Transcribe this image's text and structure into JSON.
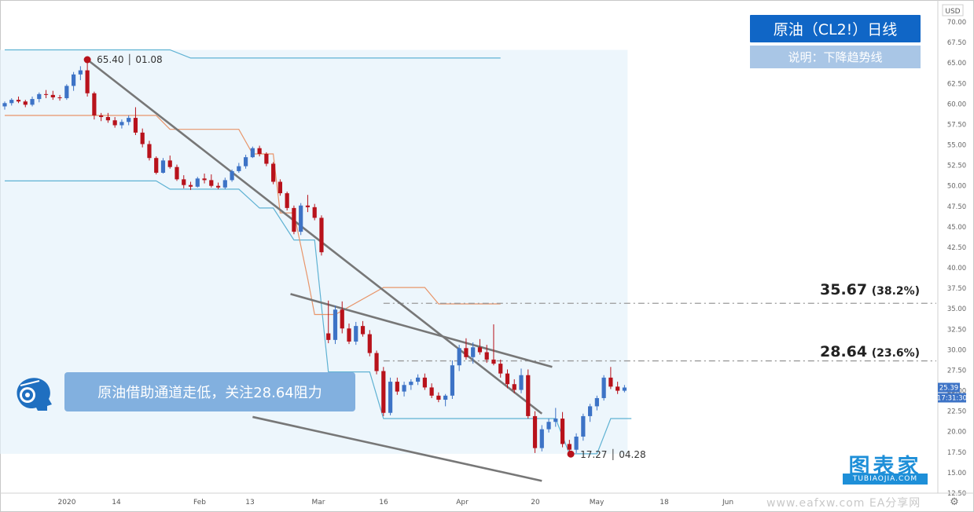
{
  "title_box": {
    "title": "原油（CL2!）日线",
    "subtitle": "说明：下降趋势线"
  },
  "note": {
    "text": "原油借助通道走低，关注28.64阻力"
  },
  "annotations": {
    "high": "65.40 │ 01.08",
    "low": "17.27 │ 04.28"
  },
  "levels": [
    {
      "value": "35.67",
      "pct": "(38.2%)"
    },
    {
      "value": "28.64",
      "pct": "(23.6%)"
    }
  ],
  "price_tags": {
    "currency": "USD",
    "last": "25.39",
    "countdown": "17:31:30"
  },
  "brand": {
    "main": "图表家",
    "sub": "TUBIAOJIA.COM"
  },
  "watermark": "www.eafxw.com  EA分享网",
  "colors": {
    "up": "#3d73c6",
    "down": "#b8121b",
    "channel": "#5fb2d3",
    "mid": "#e8956a",
    "trend": "#777777",
    "dash": "#999999"
  },
  "chart_data": {
    "type": "candlestick",
    "ylim": [
      12.5,
      71.0
    ],
    "y_ticks": [
      "70.00",
      "67.50",
      "65.00",
      "62.50",
      "60.00",
      "57.50",
      "55.00",
      "52.50",
      "50.00",
      "47.50",
      "45.00",
      "42.50",
      "40.00",
      "37.50",
      "35.00",
      "32.50",
      "30.00",
      "27.50",
      "25.00",
      "22.50",
      "20.00",
      "17.50",
      "15.00",
      "12.50"
    ],
    "x_ticks": [
      "2020",
      "14",
      "Feb",
      "13",
      "Mar",
      "16",
      "Apr",
      "20",
      "May",
      "18",
      "Jun"
    ],
    "candles": [
      [
        59.7,
        60.3,
        59.3,
        60.1
      ],
      [
        60.1,
        60.7,
        59.8,
        60.5
      ],
      [
        60.5,
        60.9,
        60.1,
        60.3
      ],
      [
        60.3,
        60.5,
        59.6,
        59.9
      ],
      [
        59.9,
        60.9,
        59.7,
        60.6
      ],
      [
        60.6,
        61.4,
        60.2,
        61.2
      ],
      [
        61.2,
        61.7,
        60.7,
        61.1
      ],
      [
        61.1,
        61.6,
        60.5,
        60.8
      ],
      [
        60.8,
        61.1,
        60.4,
        60.7
      ],
      [
        60.7,
        62.4,
        60.5,
        62.2
      ],
      [
        62.2,
        63.9,
        61.6,
        63.6
      ],
      [
        63.6,
        64.6,
        62.9,
        64.1
      ],
      [
        64.1,
        65.4,
        60.9,
        61.3
      ],
      [
        61.3,
        61.5,
        58.1,
        58.6
      ],
      [
        58.6,
        58.9,
        57.9,
        58.4
      ],
      [
        58.4,
        58.9,
        57.7,
        58.0
      ],
      [
        58.0,
        58.4,
        57.1,
        57.4
      ],
      [
        57.4,
        58.1,
        57.0,
        57.8
      ],
      [
        57.8,
        58.6,
        57.4,
        58.3
      ],
      [
        58.3,
        59.6,
        56.2,
        56.5
      ],
      [
        56.5,
        57.0,
        54.7,
        55.1
      ],
      [
        55.1,
        55.5,
        53.1,
        53.4
      ],
      [
        53.4,
        53.6,
        51.4,
        51.6
      ],
      [
        51.6,
        53.4,
        51.5,
        53.1
      ],
      [
        53.1,
        53.7,
        52.1,
        52.3
      ],
      [
        52.3,
        52.6,
        50.6,
        50.8
      ],
      [
        50.8,
        51.3,
        49.7,
        50.1
      ],
      [
        50.1,
        50.5,
        49.5,
        49.9
      ],
      [
        49.9,
        51.1,
        49.8,
        50.9
      ],
      [
        50.9,
        51.5,
        50.3,
        50.7
      ],
      [
        50.7,
        51.4,
        49.8,
        50.0
      ],
      [
        50.0,
        50.4,
        49.6,
        49.8
      ],
      [
        49.8,
        51.0,
        49.6,
        50.7
      ],
      [
        50.7,
        52.0,
        50.5,
        51.8
      ],
      [
        51.8,
        52.8,
        51.6,
        52.4
      ],
      [
        52.4,
        53.8,
        52.1,
        53.5
      ],
      [
        53.5,
        54.8,
        53.4,
        54.6
      ],
      [
        54.6,
        54.9,
        53.6,
        53.9
      ],
      [
        53.9,
        54.1,
        52.4,
        52.7
      ],
      [
        52.7,
        52.9,
        50.2,
        50.5
      ],
      [
        50.5,
        50.8,
        48.8,
        49.1
      ],
      [
        49.1,
        49.3,
        47.0,
        47.3
      ],
      [
        47.3,
        47.6,
        44.1,
        44.4
      ],
      [
        44.4,
        47.9,
        44.0,
        47.6
      ],
      [
        47.6,
        48.9,
        46.8,
        47.4
      ],
      [
        47.4,
        47.8,
        45.8,
        46.1
      ],
      [
        46.1,
        46.4,
        41.5,
        41.9
      ],
      [
        32.0,
        36.0,
        30.8,
        31.2
      ],
      [
        31.2,
        35.4,
        30.7,
        34.9
      ],
      [
        34.9,
        35.9,
        32.0,
        32.6
      ],
      [
        32.6,
        33.2,
        30.7,
        31.0
      ],
      [
        31.0,
        33.4,
        30.6,
        32.9
      ],
      [
        32.9,
        33.5,
        31.6,
        31.9
      ],
      [
        31.9,
        32.4,
        29.2,
        29.6
      ],
      [
        29.6,
        29.9,
        27.0,
        27.4
      ],
      [
        27.4,
        27.9,
        21.9,
        22.3
      ],
      [
        22.3,
        26.6,
        22.0,
        26.1
      ],
      [
        26.1,
        26.6,
        24.5,
        24.9
      ],
      [
        24.9,
        26.1,
        24.3,
        25.7
      ],
      [
        25.7,
        26.4,
        25.1,
        26.1
      ],
      [
        26.1,
        27.0,
        25.7,
        26.6
      ],
      [
        26.6,
        27.1,
        25.1,
        25.4
      ],
      [
        25.4,
        25.9,
        24.1,
        24.4
      ],
      [
        24.4,
        24.8,
        23.6,
        23.9
      ],
      [
        23.9,
        24.6,
        23.1,
        24.4
      ],
      [
        24.4,
        28.7,
        24.0,
        28.1
      ],
      [
        28.1,
        30.6,
        27.4,
        30.2
      ],
      [
        30.2,
        31.4,
        28.8,
        29.1
      ],
      [
        29.1,
        30.9,
        28.3,
        30.3
      ],
      [
        30.3,
        31.3,
        29.4,
        29.7
      ],
      [
        29.7,
        30.6,
        28.4,
        28.8
      ],
      [
        28.8,
        33.1,
        28.1,
        28.3
      ],
      [
        28.3,
        28.8,
        26.6,
        27.1
      ],
      [
        27.1,
        27.6,
        25.3,
        25.8
      ],
      [
        25.8,
        26.4,
        24.7,
        25.1
      ],
      [
        25.1,
        27.7,
        24.7,
        26.9
      ],
      [
        26.9,
        27.6,
        21.6,
        21.9
      ],
      [
        21.9,
        22.5,
        17.4,
        18.0
      ],
      [
        18.0,
        20.8,
        17.6,
        20.3
      ],
      [
        20.3,
        21.6,
        19.9,
        21.2
      ],
      [
        21.2,
        22.9,
        20.6,
        21.6
      ],
      [
        21.6,
        22.4,
        18.1,
        18.5
      ],
      [
        18.5,
        19.0,
        17.3,
        17.8
      ],
      [
        17.8,
        19.8,
        17.4,
        19.4
      ],
      [
        19.4,
        22.2,
        18.9,
        21.9
      ],
      [
        21.9,
        23.4,
        21.2,
        23.1
      ],
      [
        23.1,
        24.4,
        22.6,
        24.1
      ],
      [
        24.1,
        26.9,
        23.8,
        26.6
      ],
      [
        26.6,
        27.9,
        25.2,
        25.5
      ],
      [
        25.5,
        26.1,
        24.6,
        25.0
      ],
      [
        25.0,
        25.7,
        24.8,
        25.39
      ]
    ],
    "channel_upper": [
      [
        0,
        66.6
      ],
      [
        24,
        66.6
      ],
      [
        27,
        65.6
      ],
      [
        72,
        65.6
      ]
    ],
    "channel_lower": [
      [
        0,
        50.6
      ],
      [
        22,
        50.6
      ],
      [
        24,
        49.6
      ],
      [
        34,
        49.6
      ],
      [
        37,
        47.3
      ],
      [
        39,
        47.3
      ],
      [
        42,
        43.4
      ],
      [
        45,
        43.4
      ],
      [
        47,
        27.3
      ],
      [
        53,
        27.3
      ],
      [
        55,
        21.6
      ],
      [
        80,
        21.6
      ],
      [
        82,
        17.3
      ],
      [
        86,
        17.3
      ],
      [
        88,
        21.6
      ],
      [
        91,
        21.6
      ]
    ],
    "channel_mid": [
      [
        0,
        58.6
      ],
      [
        22,
        58.6
      ],
      [
        24,
        56.9
      ],
      [
        34,
        56.9
      ],
      [
        36,
        53.9
      ],
      [
        39,
        53.9
      ],
      [
        40,
        46.7
      ],
      [
        42,
        46.7
      ],
      [
        44,
        38.7
      ],
      [
        45,
        34.3
      ],
      [
        48,
        34.3
      ],
      [
        55,
        37.6
      ],
      [
        61,
        37.6
      ],
      [
        63,
        35.6
      ],
      [
        72,
        35.6
      ]
    ],
    "trendlines": [
      [
        [
          12,
          65.4
        ],
        [
          78,
          22.2
        ]
      ],
      [
        [
          41.5,
          36.8
        ],
        [
          79.5,
          27.9
        ]
      ],
      [
        [
          36,
          21.8
        ],
        [
          78,
          14.0
        ]
      ]
    ],
    "fib_levels": [
      {
        "value": 35.67,
        "pct": 38.2
      },
      {
        "value": 28.64,
        "pct": 23.6
      }
    ]
  }
}
